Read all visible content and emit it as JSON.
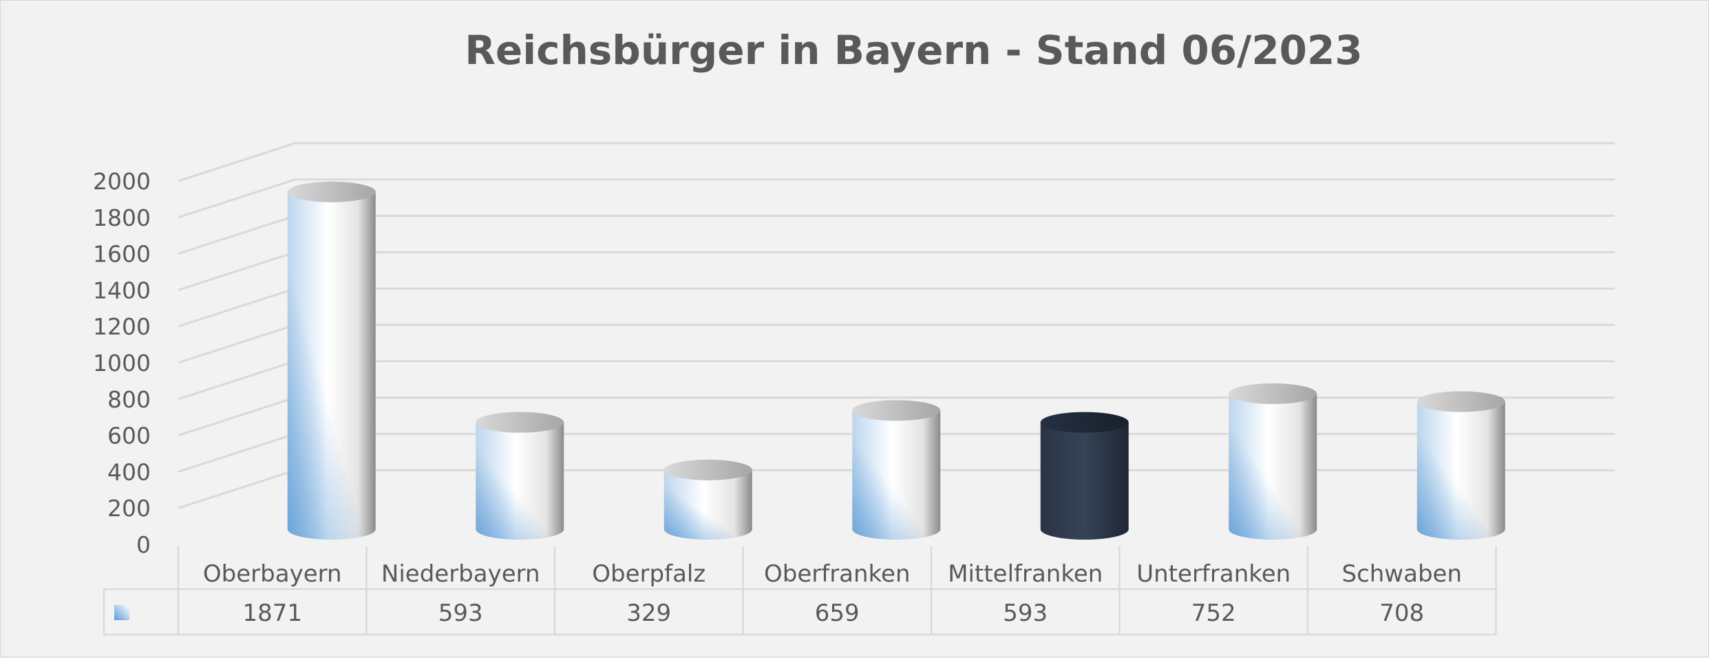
{
  "chart_data": {
    "type": "bar",
    "title": "Reichsbürger in Bayern  - Stand 06/2023",
    "xlabel": "",
    "ylabel": "",
    "ylim": [
      0,
      2000
    ],
    "yticks": [
      0,
      200,
      400,
      600,
      800,
      1000,
      1200,
      1400,
      1600,
      1800,
      2000
    ],
    "categories": [
      "Oberbayern",
      "Niederbayern",
      "Oberpfalz",
      "Oberfranken",
      "Mittelfranken",
      "Unterfranken",
      "Schwaben"
    ],
    "series": [
      {
        "values": [
          1871,
          593,
          329,
          659,
          593,
          752,
          708
        ]
      }
    ],
    "highlight_category": "Mittelfranken",
    "bar_shape": "3d-cylinder",
    "data_table": true,
    "grid": true,
    "legend": "none",
    "colors": {
      "bar_light": "#ffffff",
      "bar_blue": "#5b9bd5",
      "bar_highlight": "#2f3b4c",
      "grid": "#d9d9d9",
      "text": "#595959",
      "background": "#f2f2f2"
    }
  }
}
